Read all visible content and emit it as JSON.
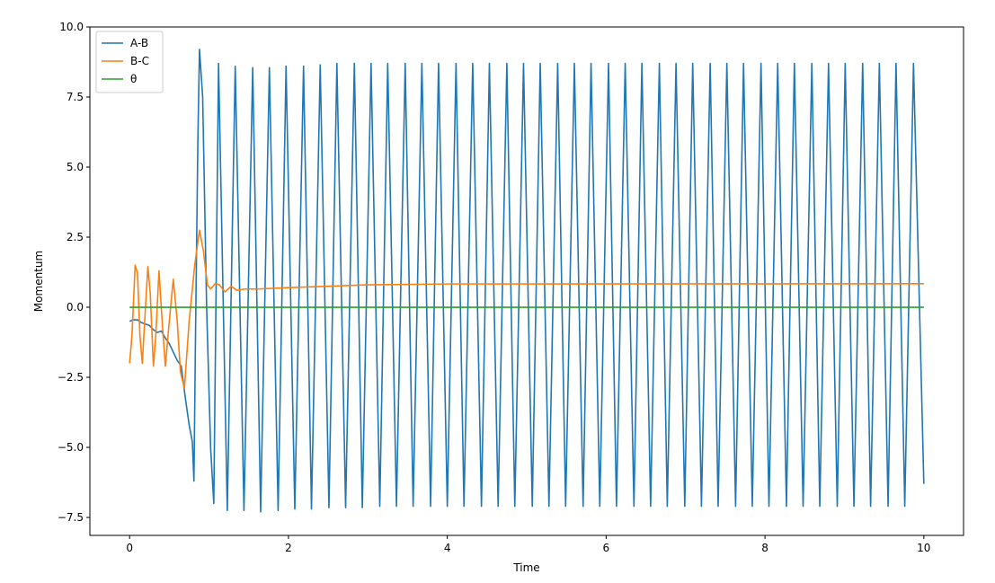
{
  "chart_data": {
    "type": "line",
    "xlabel": "Time",
    "ylabel": "Momentum",
    "xlim": [
      -0.5,
      10.5
    ],
    "ylim": [
      -8.14,
      10.0
    ],
    "xticks": [
      0,
      2,
      4,
      6,
      8,
      10
    ],
    "yticks": [
      {
        "value": -7.5,
        "label": "−7.5"
      },
      {
        "value": -5,
        "label": "−5.0"
      },
      {
        "value": -2.5,
        "label": "−2.5"
      },
      {
        "value": 0,
        "label": "0.0"
      },
      {
        "value": 2.5,
        "label": "2.5"
      },
      {
        "value": 5,
        "label": "5.0"
      },
      {
        "value": 7.5,
        "label": "7.5"
      },
      {
        "value": 10,
        "label": "10.0"
      }
    ],
    "legend": "upper left",
    "series": [
      {
        "name": "A-B",
        "color": "#1f77b4",
        "x": [
          0,
          0.05,
          0.1,
          0.15,
          0.2,
          0.25,
          0.3,
          0.35,
          0.4,
          0.45,
          0.5,
          0.55,
          0.6,
          0.65,
          0.7,
          0.75,
          0.79,
          0.81,
          0.83,
          0.86,
          0.88,
          0.92,
          0.97,
          1.02,
          1.06,
          1.12,
          1.23,
          1.33,
          1.44,
          1.55,
          1.65,
          1.76,
          1.87,
          1.97,
          2.08,
          2.19,
          2.29,
          2.4,
          2.51,
          2.61,
          2.72,
          2.83,
          2.93,
          3.04,
          3.15,
          3.25,
          3.36,
          3.47,
          3.57,
          3.68,
          3.79,
          3.89,
          4.0,
          4.11,
          4.21,
          4.32,
          4.43,
          4.53,
          4.64,
          4.75,
          4.85,
          4.96,
          5.07,
          5.17,
          5.28,
          5.39,
          5.49,
          5.6,
          5.71,
          5.81,
          5.92,
          6.03,
          6.13,
          6.24,
          6.35,
          6.45,
          6.56,
          6.67,
          6.77,
          6.88,
          6.99,
          7.09,
          7.2,
          7.31,
          7.41,
          7.52,
          7.63,
          7.73,
          7.84,
          7.95,
          8.05,
          8.16,
          8.27,
          8.37,
          8.48,
          8.59,
          8.69,
          8.8,
          8.91,
          9.01,
          9.12,
          9.23,
          9.33,
          9.44,
          9.55,
          9.65,
          9.76,
          9.87,
          10
        ],
        "values": [
          -0.5,
          -0.45,
          -0.45,
          -0.55,
          -0.6,
          -0.65,
          -0.8,
          -0.9,
          -0.85,
          -1.1,
          -1.3,
          -1.6,
          -1.9,
          -2.1,
          -3.2,
          -4.2,
          -4.8,
          -6.2,
          -1,
          6,
          9.2,
          7.5,
          0,
          -5,
          -7.0,
          8.7,
          -7.25,
          8.6,
          -7.25,
          8.55,
          -7.3,
          8.55,
          -7.25,
          8.6,
          -7.2,
          8.6,
          -7.2,
          8.65,
          -7.15,
          8.7,
          -7.15,
          8.7,
          -7.15,
          8.7,
          -7.1,
          8.7,
          -7.1,
          8.7,
          -7.1,
          8.7,
          -7.1,
          8.7,
          -7.1,
          8.7,
          -7.1,
          8.7,
          -7.1,
          8.7,
          -7.1,
          8.7,
          -7.1,
          8.7,
          -7.1,
          8.7,
          -7.1,
          8.7,
          -7.1,
          8.7,
          -7.1,
          8.7,
          -7.1,
          8.7,
          -7.1,
          8.7,
          -7.1,
          8.7,
          -7.1,
          8.7,
          -7.1,
          8.7,
          -7.1,
          8.7,
          -7.1,
          8.7,
          -7.1,
          8.7,
          -7.1,
          8.7,
          -7.1,
          8.7,
          -7.1,
          8.7,
          -7.1,
          8.7,
          -7.1,
          8.7,
          -7.1,
          8.7,
          -7.1,
          8.7,
          -7.1,
          8.7,
          -7.1,
          8.7,
          -7.1,
          8.7,
          -7.1,
          8.7,
          -6.3
        ]
      },
      {
        "name": "B-C",
        "color": "#ff7f0e",
        "x": [
          0,
          0.03,
          0.07,
          0.1,
          0.13,
          0.16,
          0.2,
          0.23,
          0.26,
          0.3,
          0.33,
          0.37,
          0.41,
          0.45,
          0.5,
          0.55,
          0.6,
          0.64,
          0.69,
          0.75,
          0.82,
          0.88,
          0.93,
          0.98,
          1.02,
          1.08,
          1.13,
          1.2,
          1.28,
          1.35,
          1.45,
          1.6,
          2,
          3,
          4,
          10
        ],
        "values": [
          -2,
          -1,
          1.5,
          1.2,
          -1,
          -2,
          0,
          1.45,
          0.5,
          -2.1,
          -1,
          1.3,
          -0.5,
          -2.1,
          -0.5,
          1.0,
          -0.5,
          -2.3,
          -2.9,
          -0.5,
          1.5,
          2.75,
          2,
          0.8,
          0.65,
          0.85,
          0.8,
          0.55,
          0.75,
          0.6,
          0.65,
          0.65,
          0.7,
          0.8,
          0.83,
          0.84
        ]
      },
      {
        "name": "θ",
        "color": "#2ca02c",
        "x": [
          0,
          10
        ],
        "values": [
          0,
          0
        ]
      }
    ]
  }
}
